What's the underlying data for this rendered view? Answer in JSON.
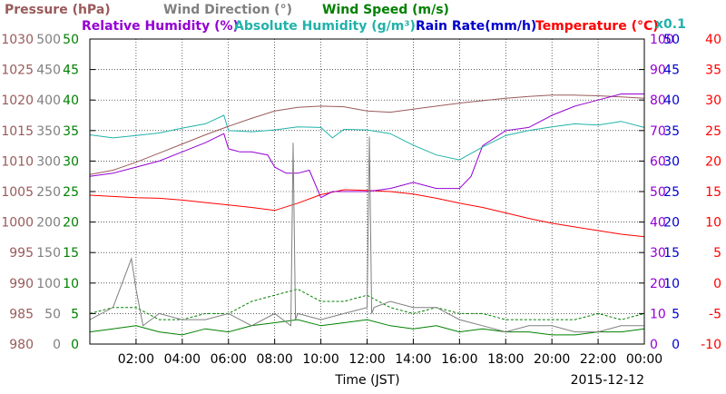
{
  "chart_data": {
    "type": "line",
    "date_label": "2015-12-12",
    "xlabel": "Time (JST)",
    "grid": true,
    "x_ticks": [
      "02:00",
      "04:00",
      "06:00",
      "08:00",
      "10:00",
      "12:00",
      "14:00",
      "16:00",
      "18:00",
      "20:00",
      "22:00",
      "00:00"
    ],
    "legend": [
      {
        "name": "Pressure (hPa)",
        "color": "#9a5a5a"
      },
      {
        "name": "Wind Direction (°)",
        "color": "#808080"
      },
      {
        "name": "Wind Speed (m/s)",
        "color": "#008000"
      },
      {
        "name": "Relative Humidity (%)",
        "color": "#9400d3"
      },
      {
        "name": "Absolute Humidity (g/m³)",
        "color": "#20b2aa"
      },
      {
        "name": "Rain Rate(mm/h)",
        "color": "#0000cc"
      },
      {
        "name": "Temperature (°C)",
        "color": "#ff0000"
      }
    ],
    "abs_humidity_scale": "x0.1",
    "axes": {
      "pressure": {
        "ticks": [
          "980",
          "985",
          "990",
          "995",
          "1000",
          "1005",
          "1010",
          "1015",
          "1020",
          "1025",
          "1030"
        ],
        "range": [
          980,
          1030
        ],
        "color": "#9a5a5a"
      },
      "wind_direction": {
        "ticks": [
          "0",
          "50",
          "100",
          "150",
          "200",
          "250",
          "300",
          "350",
          "400",
          "450",
          "500"
        ],
        "range": [
          0,
          500
        ],
        "color": "#808080"
      },
      "wind_speed": {
        "ticks": [
          "0",
          "5",
          "10",
          "15",
          "20",
          "25",
          "30",
          "35",
          "40",
          "45",
          "50"
        ],
        "range": [
          0,
          50
        ],
        "color": "#008000"
      },
      "relative_humidity": {
        "ticks": [
          "0",
          "10",
          "20",
          "30",
          "40",
          "50",
          "60",
          "70",
          "80",
          "90",
          "100"
        ],
        "range": [
          0,
          100
        ],
        "color": "#9400d3"
      },
      "rain_rate": {
        "ticks": [
          "0",
          "5",
          "10",
          "15",
          "20",
          "25",
          "30",
          "35",
          "40",
          "45",
          "50"
        ],
        "range": [
          0,
          50
        ],
        "color": "#0000cc"
      },
      "temperature": {
        "ticks": [
          "-10",
          "-5",
          "0",
          "5",
          "10",
          "15",
          "20",
          "25",
          "30",
          "35",
          "40"
        ],
        "range": [
          -10,
          40
        ],
        "color": "#ff0000"
      }
    },
    "x_range": [
      0,
      24
    ],
    "series": [
      {
        "name": "Pressure (hPa)",
        "color": "#9a5a5a",
        "x": [
          0,
          1,
          2,
          3,
          4,
          5,
          6,
          7,
          8,
          9,
          10,
          11,
          12,
          13,
          14,
          15,
          16,
          17,
          18,
          19,
          20,
          21,
          22,
          23,
          24
        ],
        "y": [
          1007.8,
          1008.5,
          1009.8,
          1011.3,
          1012.8,
          1014.3,
          1015.7,
          1017.0,
          1018.2,
          1018.8,
          1019.0,
          1018.9,
          1018.2,
          1018.0,
          1018.5,
          1019.0,
          1019.5,
          1019.9,
          1020.3,
          1020.6,
          1020.8,
          1020.8,
          1020.7,
          1020.5,
          1020.3
        ]
      },
      {
        "name": "Temperature (°C)",
        "color": "#ff0000",
        "x": [
          0,
          1,
          2,
          3,
          4,
          5,
          6,
          7,
          8,
          9,
          10,
          11,
          12,
          13,
          14,
          15,
          16,
          17,
          18,
          19,
          20,
          21,
          22,
          23,
          24
        ],
        "y": [
          14.4,
          14.2,
          14.0,
          13.9,
          13.6,
          13.2,
          12.8,
          12.4,
          11.9,
          13.1,
          14.5,
          15.3,
          15.2,
          15.0,
          14.6,
          13.9,
          13.1,
          12.4,
          11.5,
          10.6,
          9.8,
          9.2,
          8.6,
          8.0,
          7.6
        ]
      },
      {
        "name": "Relative Humidity (%)",
        "color": "#9400d3",
        "x": [
          0,
          1,
          2,
          3,
          4,
          5,
          5.8,
          6,
          6.5,
          7,
          7.7,
          8,
          8.5,
          9,
          9.5,
          10,
          10.5,
          11,
          12,
          13,
          14,
          15,
          16,
          16.5,
          17,
          18,
          19,
          20,
          21,
          22,
          23,
          24
        ],
        "y": [
          55,
          56,
          58,
          60,
          63,
          66,
          69,
          64,
          63,
          63,
          62,
          58,
          56,
          56,
          57,
          48,
          50,
          50,
          50,
          51,
          53,
          51,
          51,
          55,
          65,
          70,
          71,
          75,
          78,
          80,
          82,
          82
        ]
      },
      {
        "name": "Absolute Humidity (g/m³)",
        "color": "#20b2aa",
        "x": [
          0,
          1,
          2,
          3,
          4,
          5,
          5.8,
          6,
          7,
          8,
          9,
          10,
          10.5,
          11,
          12,
          13,
          14,
          15,
          16,
          17,
          18,
          19,
          20,
          21,
          22,
          23,
          24
        ],
        "y": [
          34.3,
          33.8,
          34.2,
          34.6,
          35.4,
          36.1,
          37.5,
          35.0,
          34.8,
          35.1,
          35.6,
          35.5,
          33.8,
          35.2,
          35.1,
          34.5,
          32.6,
          31.0,
          30.2,
          32.3,
          34.2,
          35.0,
          35.6,
          36.1,
          35.9,
          36.5,
          35.5
        ]
      },
      {
        "name": "Wind Speed (m/s)",
        "color": "#008000",
        "x": [
          0,
          1,
          2,
          3,
          4,
          5,
          6,
          7,
          8,
          9,
          10,
          11,
          12,
          13,
          14,
          15,
          16,
          17,
          18,
          19,
          20,
          21,
          22,
          23,
          24
        ],
        "y": [
          2,
          2.5,
          3,
          2,
          1.5,
          2.5,
          2,
          3,
          3.5,
          4,
          3,
          3.5,
          4,
          3,
          2.5,
          3,
          2,
          2.5,
          2,
          2,
          1.5,
          1.5,
          2,
          2,
          2.5
        ]
      },
      {
        "name": "Wind Speed max (m/s)",
        "color": "#008000",
        "x": [
          0,
          1,
          2,
          3,
          4,
          5,
          6,
          7,
          8,
          9,
          10,
          11,
          12,
          13,
          14,
          15,
          16,
          17,
          18,
          19,
          20,
          21,
          22,
          23,
          24
        ],
        "y": [
          5,
          6,
          6,
          4,
          4,
          5,
          5,
          7,
          8,
          9,
          7,
          7,
          8,
          6,
          5,
          6,
          5,
          5,
          4,
          4,
          4,
          4,
          5,
          4,
          5
        ]
      },
      {
        "name": "Wind Direction (°)",
        "color": "#808080",
        "x": [
          0,
          1,
          1.8,
          2,
          2.3,
          3,
          4,
          5,
          6,
          7,
          8,
          8.7,
          8.8,
          8.9,
          9,
          10,
          11,
          12,
          12.1,
          12.2,
          12.3,
          13,
          14,
          15,
          16,
          17,
          18,
          19,
          20,
          21,
          22,
          23,
          24
        ],
        "y": [
          40,
          60,
          140,
          90,
          30,
          50,
          40,
          40,
          50,
          30,
          50,
          30,
          330,
          40,
          50,
          40,
          50,
          60,
          340,
          50,
          60,
          70,
          60,
          60,
          40,
          30,
          20,
          30,
          30,
          20,
          20,
          30,
          30
        ]
      }
    ]
  }
}
